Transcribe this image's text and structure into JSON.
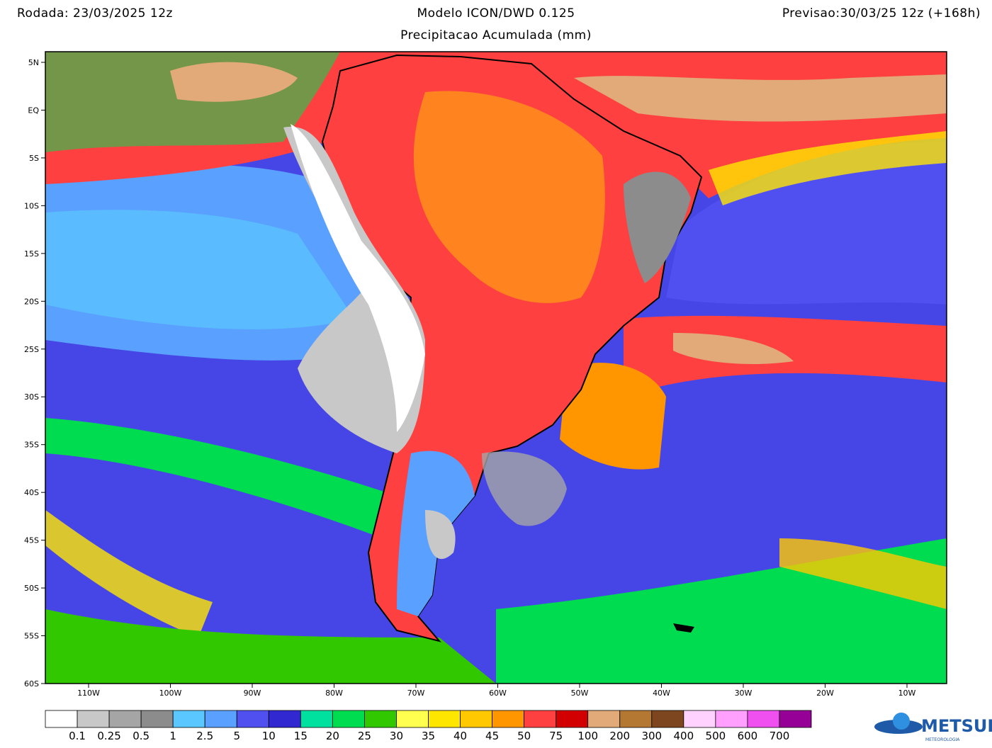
{
  "header": {
    "run": "Rodada: 23/03/2025 12z",
    "model": "Modelo ICON/DWD 0.125",
    "field": "Precipitacao Acumulada (mm)",
    "forecast": "Previsao:30/03/25 12z (+168h)"
  },
  "map": {
    "lat_labels": [
      "5N",
      "EQ",
      "5S",
      "10S",
      "15S",
      "20S",
      "25S",
      "30S",
      "35S",
      "40S",
      "45S",
      "50S",
      "55S",
      "60S"
    ],
    "lon_labels": [
      "110W",
      "100W",
      "90W",
      "80W",
      "70W",
      "60W",
      "50W",
      "40W",
      "30W",
      "20W",
      "10W"
    ]
  },
  "colorbar": {
    "colors": [
      "#ffffff",
      "#c8c8c8",
      "#a5a5a5",
      "#8c8c8c",
      "#5ac8ff",
      "#5aa0ff",
      "#5050f0",
      "#3228d2",
      "#00e1a0",
      "#00dc50",
      "#32c800",
      "#ffff50",
      "#ffe600",
      "#ffc800",
      "#ff9600",
      "#ff4040",
      "#d20000",
      "#e1aa78",
      "#b47832",
      "#7d461e",
      "#ffd2ff",
      "#ffa0ff",
      "#f050f0",
      "#960096"
    ],
    "labels": [
      "0.1",
      "0.25",
      "0.5",
      "1",
      "2.5",
      "5",
      "10",
      "15",
      "20",
      "25",
      "30",
      "35",
      "40",
      "45",
      "50",
      "75",
      "100",
      "200",
      "300",
      "400",
      "500",
      "600",
      "700"
    ]
  },
  "logo": {
    "name": "METSUL",
    "tagline": "METEOROLOGIA"
  }
}
